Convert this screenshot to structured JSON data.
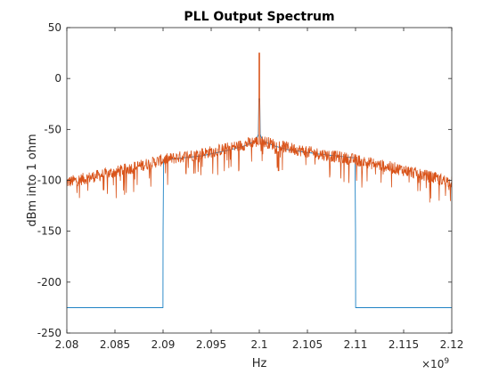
{
  "chart_data": {
    "type": "line",
    "title": "PLL Output Spectrum",
    "xlabel": "Hz",
    "ylabel": "dBm into 1 ohm",
    "x_exponent_label": "×10",
    "x_exponent_power": "9",
    "xlim": [
      2.08,
      2.12
    ],
    "ylim": [
      -250,
      50
    ],
    "x_scale_factor": "1e9",
    "xticks": [
      2.08,
      2.085,
      2.09,
      2.095,
      2.1,
      2.105,
      2.11,
      2.115,
      2.12
    ],
    "xtick_labels": [
      "2.08",
      "2.085",
      "2.09",
      "2.095",
      "2.1",
      "2.105",
      "2.11",
      "2.115",
      "2.12"
    ],
    "yticks": [
      -250,
      -200,
      -150,
      -100,
      -50,
      0,
      50
    ],
    "ytick_labels": [
      "-250",
      "-200",
      "-150",
      "-100",
      "-50",
      "0",
      "50"
    ],
    "grid": false,
    "series": [
      {
        "color": "#0072BD",
        "style": "smooth",
        "x": [
          2.08,
          2.08999,
          2.09,
          2.09005,
          2.094,
          2.097,
          2.0985,
          2.0992,
          2.0996,
          2.0999,
          2.09995,
          2.1,
          2.10005,
          2.1001,
          2.1004,
          2.1008,
          2.1015,
          2.103,
          2.106,
          2.10995,
          2.11,
          2.11001,
          2.12
        ],
        "values": [
          -225,
          -225,
          -152,
          -80,
          -76,
          -70,
          -66,
          -63,
          -62,
          -55,
          -20,
          -20,
          -20,
          -55,
          -62,
          -63,
          -66,
          -70,
          -74,
          -78,
          -152,
          -225,
          -225
        ]
      },
      {
        "color": "#D95319",
        "style": "noisy",
        "x": [
          2.08,
          2.085,
          2.09,
          2.095,
          2.098,
          2.0995,
          2.1,
          2.1005,
          2.102,
          2.105,
          2.11,
          2.115,
          2.12
        ],
        "values": [
          -102,
          -92,
          -80,
          -72,
          -66,
          -62,
          25,
          -62,
          -66,
          -72,
          -80,
          -90,
          -102
        ]
      }
    ]
  }
}
